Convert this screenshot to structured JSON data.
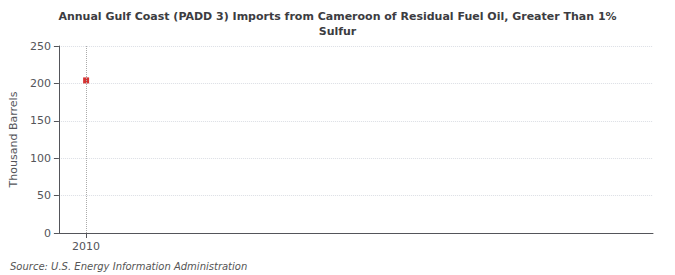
{
  "chart_data": {
    "type": "scatter",
    "title": "Annual Gulf Coast (PADD 3) Imports from Cameroon of Residual Fuel Oil, Greater Than 1%\nSulfur",
    "ylabel": "Thousand Barrels",
    "source": "Source: U.S. Energy Information Administration",
    "x": [
      2010
    ],
    "values": [
      204
    ],
    "color": "#cc0000",
    "marker": "square",
    "xlim": [
      2009.4,
      2022.5
    ],
    "xticks": [
      2010
    ],
    "ylim": [
      0,
      250
    ],
    "yticks": [
      0,
      50,
      100,
      150,
      200,
      250
    ],
    "grid": true
  }
}
